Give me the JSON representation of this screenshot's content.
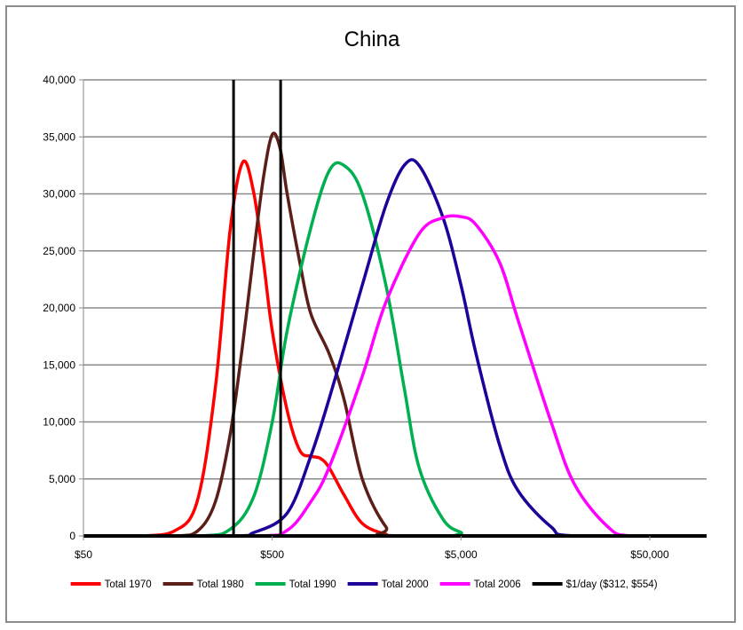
{
  "chart_data": {
    "type": "line",
    "title": "China",
    "xlabel": "",
    "ylabel": "",
    "x_scale": "log",
    "xlim": [
      50,
      100000
    ],
    "ylim": [
      0,
      40000
    ],
    "x_tick_values": [
      50,
      500,
      5000,
      50000
    ],
    "x_tick_labels": [
      "$50",
      "$500",
      "$5,000",
      "$50,000"
    ],
    "y_tick_values": [
      0,
      5000,
      10000,
      15000,
      20000,
      25000,
      30000,
      35000,
      40000
    ],
    "y_tick_labels": [
      "0",
      "5,000",
      "10,000",
      "15,000",
      "20,000",
      "25,000",
      "30,000",
      "35,000",
      "40,000"
    ],
    "grid": "horizontal",
    "legend_position": "bottom",
    "series": [
      {
        "name": "Total 1970",
        "color": "#ff0000",
        "points": [
          [
            50,
            0
          ],
          [
            100,
            0
          ],
          [
            150,
            400
          ],
          [
            200,
            3000
          ],
          [
            250,
            13000
          ],
          [
            300,
            27000
          ],
          [
            350,
            32800
          ],
          [
            400,
            30000
          ],
          [
            450,
            24000
          ],
          [
            500,
            18000
          ],
          [
            600,
            11000
          ],
          [
            700,
            7500
          ],
          [
            800,
            7000
          ],
          [
            900,
            6800
          ],
          [
            1000,
            6000
          ],
          [
            1200,
            3600
          ],
          [
            1500,
            1100
          ],
          [
            2000,
            150
          ],
          [
            2500,
            0
          ],
          [
            100000,
            0
          ]
        ]
      },
      {
        "name": "Total 1980",
        "color": "#5c1f18",
        "points": [
          [
            50,
            0
          ],
          [
            150,
            0
          ],
          [
            200,
            400
          ],
          [
            250,
            3000
          ],
          [
            300,
            9000
          ],
          [
            350,
            17000
          ],
          [
            400,
            25000
          ],
          [
            450,
            31500
          ],
          [
            500,
            35200
          ],
          [
            550,
            34000
          ],
          [
            600,
            30000
          ],
          [
            700,
            24000
          ],
          [
            800,
            19500
          ],
          [
            1000,
            16000
          ],
          [
            1200,
            12000
          ],
          [
            1500,
            5000
          ],
          [
            2000,
            800
          ],
          [
            2500,
            0
          ],
          [
            100000,
            0
          ]
        ]
      },
      {
        "name": "Total 1990",
        "color": "#00b050",
        "points": [
          [
            50,
            0
          ],
          [
            200,
            0
          ],
          [
            300,
            600
          ],
          [
            400,
            3500
          ],
          [
            500,
            10000
          ],
          [
            600,
            18000
          ],
          [
            800,
            27000
          ],
          [
            1000,
            32000
          ],
          [
            1200,
            32500
          ],
          [
            1500,
            30000
          ],
          [
            2000,
            22000
          ],
          [
            2500,
            13000
          ],
          [
            3000,
            6000
          ],
          [
            4000,
            1500
          ],
          [
            5000,
            300
          ],
          [
            6000,
            0
          ],
          [
            100000,
            0
          ]
        ]
      },
      {
        "name": "Total 2000",
        "color": "#1f0099",
        "points": [
          [
            50,
            0
          ],
          [
            300,
            0
          ],
          [
            400,
            300
          ],
          [
            600,
            2000
          ],
          [
            800,
            7000
          ],
          [
            1000,
            12000
          ],
          [
            1500,
            22000
          ],
          [
            2000,
            29000
          ],
          [
            2500,
            32500
          ],
          [
            3000,
            32500
          ],
          [
            4000,
            28000
          ],
          [
            5000,
            22000
          ],
          [
            6000,
            16000
          ],
          [
            8000,
            8000
          ],
          [
            10000,
            4000
          ],
          [
            15000,
            800
          ],
          [
            20000,
            0
          ],
          [
            100000,
            0
          ]
        ]
      },
      {
        "name": "Total 2006",
        "color": "#ff00ff",
        "points": [
          [
            50,
            0
          ],
          [
            400,
            0
          ],
          [
            600,
            500
          ],
          [
            800,
            3000
          ],
          [
            1000,
            6000
          ],
          [
            1500,
            14000
          ],
          [
            2000,
            20500
          ],
          [
            3000,
            26500
          ],
          [
            4000,
            27900
          ],
          [
            5000,
            28000
          ],
          [
            6000,
            27300
          ],
          [
            8000,
            24000
          ],
          [
            10000,
            19000
          ],
          [
            15000,
            10000
          ],
          [
            20000,
            4500
          ],
          [
            30000,
            800
          ],
          [
            40000,
            0
          ],
          [
            100000,
            0
          ]
        ]
      },
      {
        "name": "$1/day ($312, $554)",
        "color": "#000000",
        "verticals": [
          312,
          554
        ]
      }
    ]
  }
}
